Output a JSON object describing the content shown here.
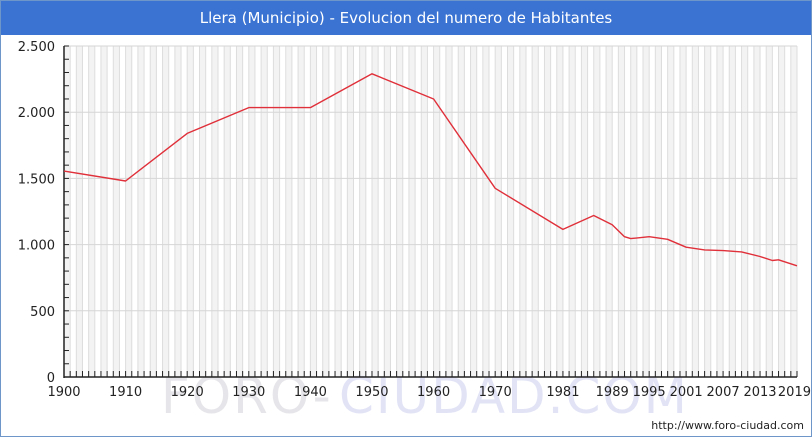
{
  "header": {
    "title": "Llera (Municipio) - Evolucion del numero de Habitantes"
  },
  "footer": {
    "credit": "http://www.foro-ciudad.com",
    "watermark_left": "FORO-",
    "watermark_right": "CIUDAD.COM"
  },
  "colors": {
    "title_bar": "#3a73d2",
    "line": "#e0303a",
    "grid": "#dddddd",
    "band": "#f3f3f3",
    "watermark_gray": "#e6e6ea",
    "watermark_blue": "#e2e4f6"
  },
  "chart_data": {
    "type": "line",
    "title": "Llera (Municipio) - Evolucion del numero de Habitantes",
    "xlabel": "",
    "ylabel": "",
    "ylim": [
      0,
      2500
    ],
    "xlim": [
      1900,
      2019
    ],
    "y_ticks": [
      0,
      500,
      1000,
      1500,
      2000,
      2500
    ],
    "y_tick_labels": [
      "0",
      "500",
      "1.000",
      "1.500",
      "2.000",
      "2.500"
    ],
    "x_tick_labels": [
      "1900",
      "1910",
      "1920",
      "1930",
      "1940",
      "1950",
      "1960",
      "1970",
      "1981",
      "1989",
      "1995",
      "2001",
      "2007",
      "2013",
      "2019"
    ],
    "grid": true,
    "legend": "none",
    "series": [
      {
        "name": "Habitantes",
        "x": [
          1900,
          1910,
          1920,
          1930,
          1940,
          1950,
          1960,
          1970,
          1981,
          1986,
          1989,
          1991,
          1992,
          1995,
          1998,
          2001,
          2004,
          2007,
          2010,
          2013,
          2015,
          2016,
          2019
        ],
        "values": [
          1555,
          1480,
          1840,
          2035,
          2035,
          2290,
          2100,
          1425,
          1115,
          1220,
          1150,
          1060,
          1045,
          1060,
          1040,
          980,
          960,
          955,
          945,
          910,
          880,
          885,
          840
        ]
      }
    ]
  }
}
